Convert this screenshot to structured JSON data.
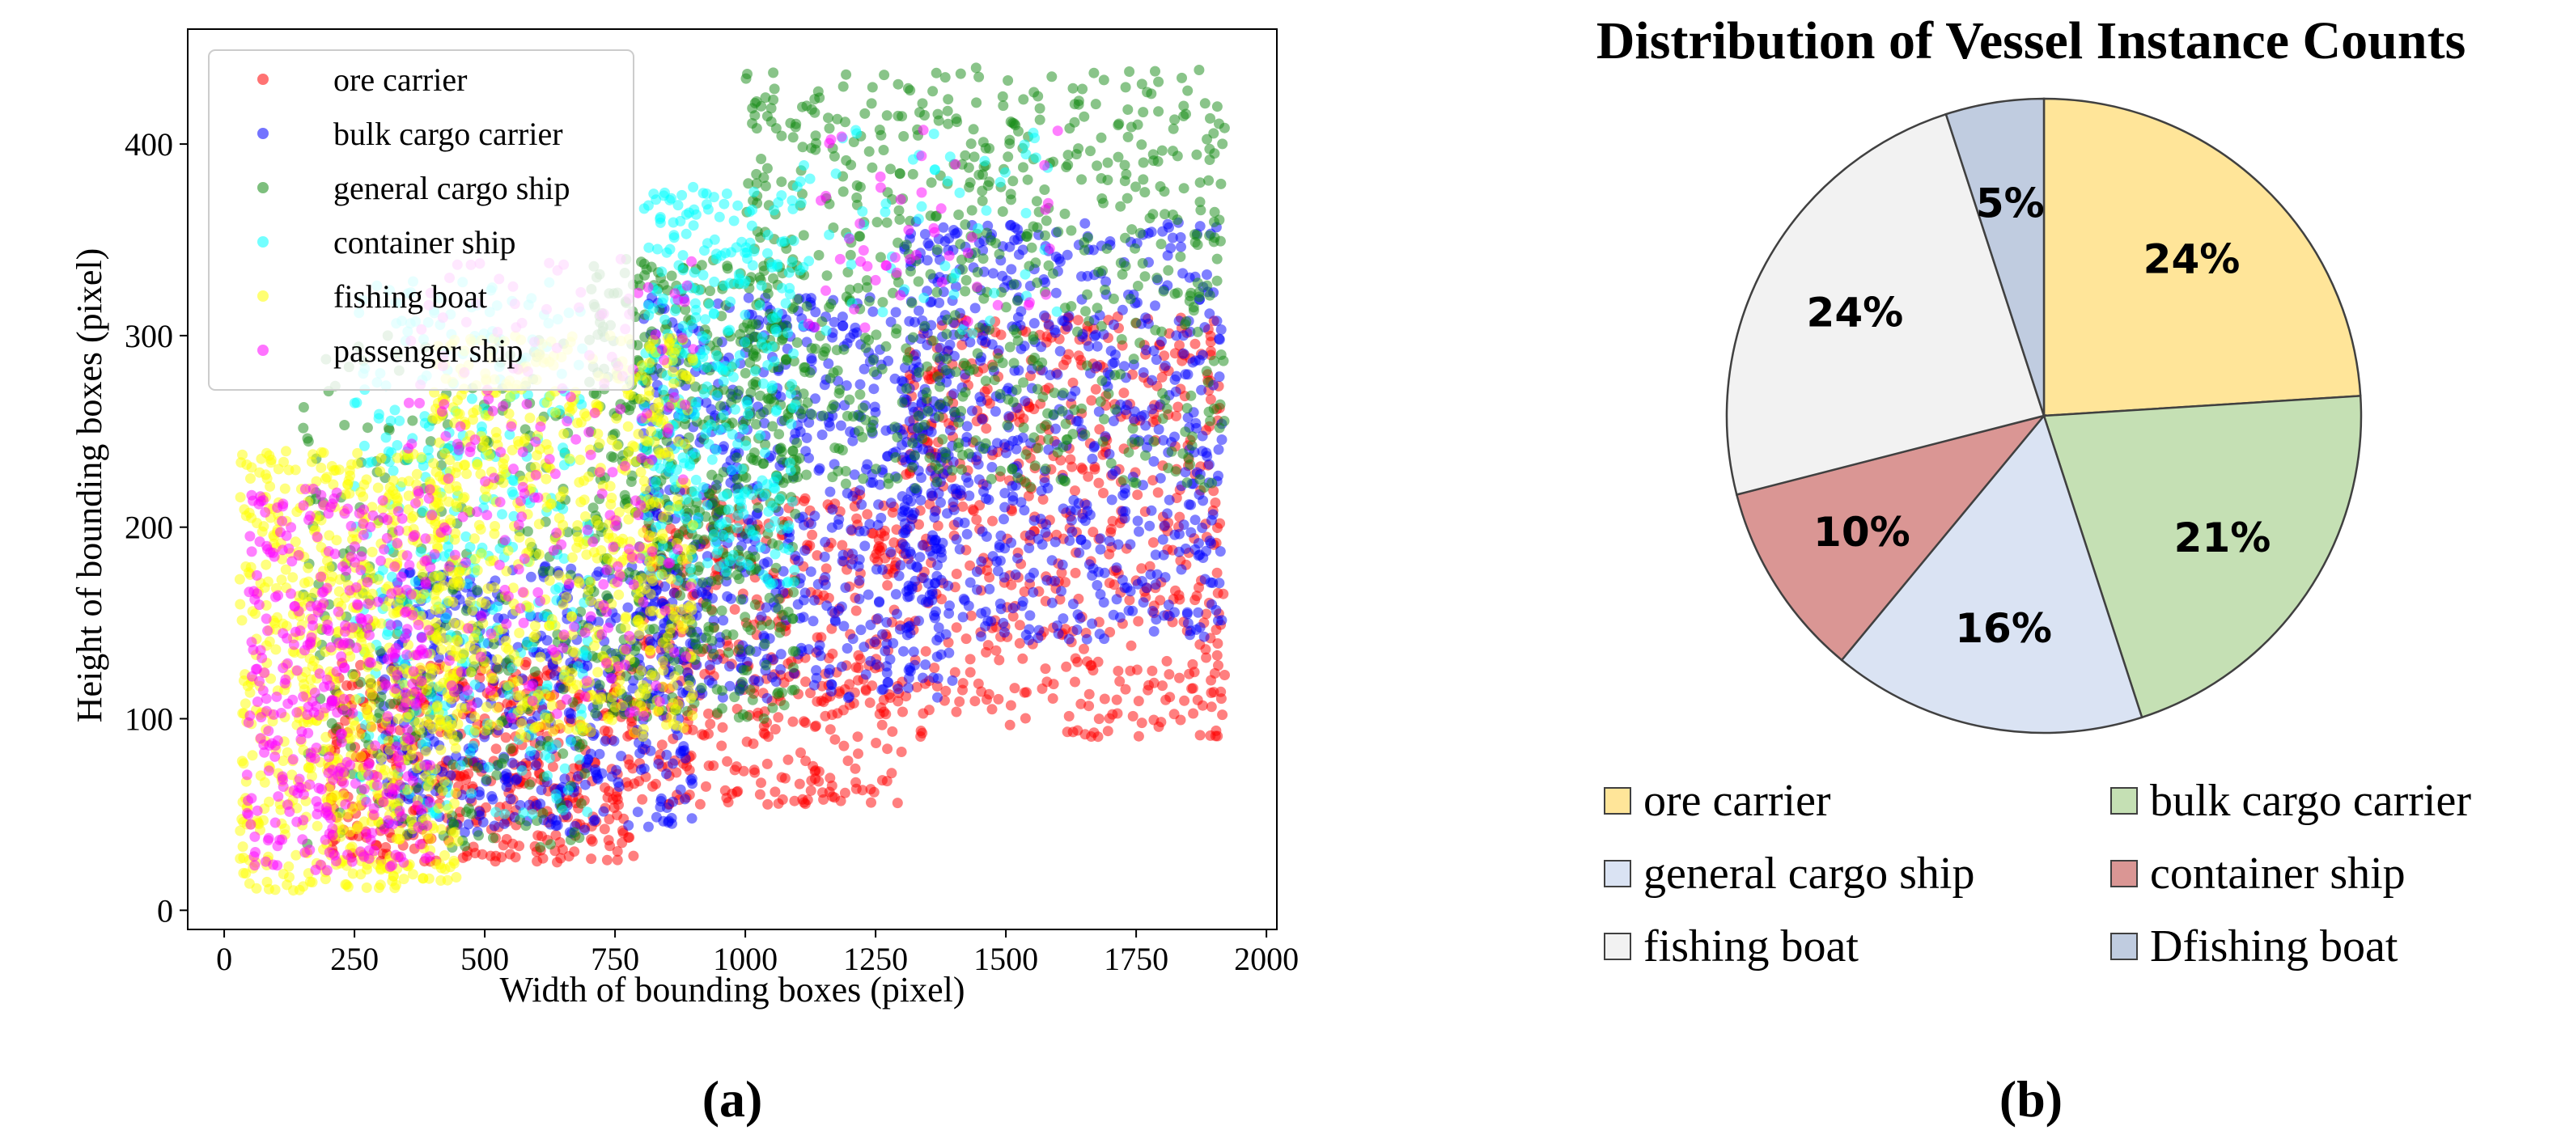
{
  "chart_data": [
    {
      "type": "scatter",
      "panel_label": "(a)",
      "xlabel": "Width of bounding boxes (pixel)",
      "ylabel": "Height of bounding boxes (pixel)",
      "xlim": [
        -70,
        2020
      ],
      "ylim": [
        -10,
        460
      ],
      "xticks": [
        0,
        250,
        500,
        750,
        1000,
        1250,
        1500,
        1750,
        2000
      ],
      "yticks": [
        0,
        100,
        200,
        300,
        400
      ],
      "legend_position": "upper-left",
      "series": [
        {
          "name": "ore carrier",
          "color": "#ff0000",
          "clusters": [
            {
              "x": [
                200,
                800
              ],
              "y": [
                25,
                130
              ],
              "n": 500
            },
            {
              "x": [
                800,
                1300
              ],
              "y": [
                55,
                220
              ],
              "n": 450
            },
            {
              "x": [
                1300,
                1920
              ],
              "y": [
                90,
                310
              ],
              "n": 600
            }
          ]
        },
        {
          "name": "bulk cargo carrier",
          "color": "#0000ff",
          "clusters": [
            {
              "x": [
                300,
                900
              ],
              "y": [
                40,
                180
              ],
              "n": 500
            },
            {
              "x": [
                800,
                1400
              ],
              "y": [
                110,
                320
              ],
              "n": 650
            },
            {
              "x": [
                1300,
                1920
              ],
              "y": [
                140,
                360
              ],
              "n": 650
            }
          ]
        },
        {
          "name": "general cargo ship",
          "color": "#138a13",
          "clusters": [
            {
              "x": [
                150,
                700
              ],
              "y": [
                30,
                300
              ],
              "n": 300
            },
            {
              "x": [
                700,
                1100
              ],
              "y": [
                100,
                340
              ],
              "n": 550
            },
            {
              "x": [
                1000,
                1920
              ],
              "y": [
                220,
                440
              ],
              "n": 700
            }
          ]
        },
        {
          "name": "container ship",
          "color": "#00ffff",
          "clusters": [
            {
              "x": [
                250,
                700
              ],
              "y": [
                50,
                330
              ],
              "n": 350
            },
            {
              "x": [
                800,
                1100
              ],
              "y": [
                170,
                380
              ],
              "n": 350
            },
            {
              "x": [
                1100,
                1600
              ],
              "y": [
                300,
                410
              ],
              "n": 60
            }
          ]
        },
        {
          "name": "fishing boat",
          "color": "#ffff00",
          "clusters": [
            {
              "x": [
                30,
                450
              ],
              "y": [
                10,
                240
              ],
              "n": 750
            },
            {
              "x": [
                400,
                900
              ],
              "y": [
                90,
                300
              ],
              "n": 650
            }
          ]
        },
        {
          "name": "passenger ship",
          "color": "#ff00ff",
          "clusters": [
            {
              "x": [
                40,
                400
              ],
              "y": [
                20,
                220
              ],
              "n": 380
            },
            {
              "x": [
                350,
                900
              ],
              "y": [
                100,
                340
              ],
              "n": 220
            },
            {
              "x": [
                1100,
                1600
              ],
              "y": [
                300,
                410
              ],
              "n": 50
            }
          ]
        }
      ]
    },
    {
      "type": "pie",
      "panel_label": "(b)",
      "title": "Distribution of Vessel Instance Counts",
      "slices": [
        {
          "label": "ore carrier",
          "value": 24,
          "text": "24%",
          "color": "#ffe599"
        },
        {
          "label": "bulk cargo carrier",
          "value": 21,
          "text": "21%",
          "color": "#c5e0b4"
        },
        {
          "label": "general cargo ship",
          "value": 16,
          "text": "16%",
          "color": "#dae3f3"
        },
        {
          "label": "container ship",
          "value": 10,
          "text": "10%",
          "color": "#da9694"
        },
        {
          "label": "fishing boat",
          "value": 24,
          "text": "24%",
          "color": "#f2f2f2"
        },
        {
          "label": "Dfishing boat",
          "value": 5,
          "text": "5%",
          "color": "#c0cce0"
        }
      ]
    }
  ]
}
